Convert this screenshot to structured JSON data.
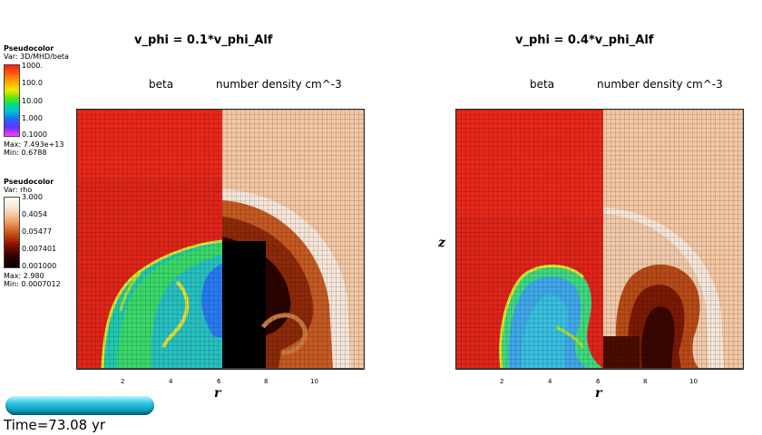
{
  "plots": [
    {
      "title": "v_phi = 0.1*v_phi_Alf",
      "left_label": "beta",
      "right_label": "number density cm^-3",
      "x_axis_label": "r",
      "x_ticks": [
        "2",
        "4",
        "6",
        "8",
        "10"
      ]
    },
    {
      "title": "v_phi = 0.4*v_phi_Alf",
      "left_label": "beta",
      "right_label": "number density cm^-3",
      "x_axis_label": "r",
      "y_axis_label": "z",
      "x_ticks": [
        "2",
        "4",
        "6",
        "8",
        "10"
      ]
    }
  ],
  "legends": [
    {
      "plot_type": "Pseudocolor",
      "var": "Var: 3D/MHD/beta",
      "ticks": [
        "1000.",
        "100.0",
        "10.00",
        "1.000",
        "0.1000"
      ],
      "max": "Max:  7.493e+13",
      "min": "Min:  0.6788",
      "colors": [
        "#ff2a1a",
        "#ff9a00",
        "#e8f000",
        "#38e000",
        "#00d0c0",
        "#1060ff",
        "#7030ff",
        "#ff40ff"
      ]
    },
    {
      "plot_type": "Pseudocolor",
      "var": "Var: rho",
      "ticks": [
        "3.000",
        "0.4054",
        "0.05477",
        "0.007401",
        "0.001000"
      ],
      "max": "Max:  2.980",
      "min": "Min:  0.0007012",
      "colors": [
        "#ffffff",
        "#f6d6b8",
        "#e8803a",
        "#b02800",
        "#500000",
        "#000000"
      ]
    }
  ],
  "time": {
    "label": "Time=73.08 yr"
  }
}
